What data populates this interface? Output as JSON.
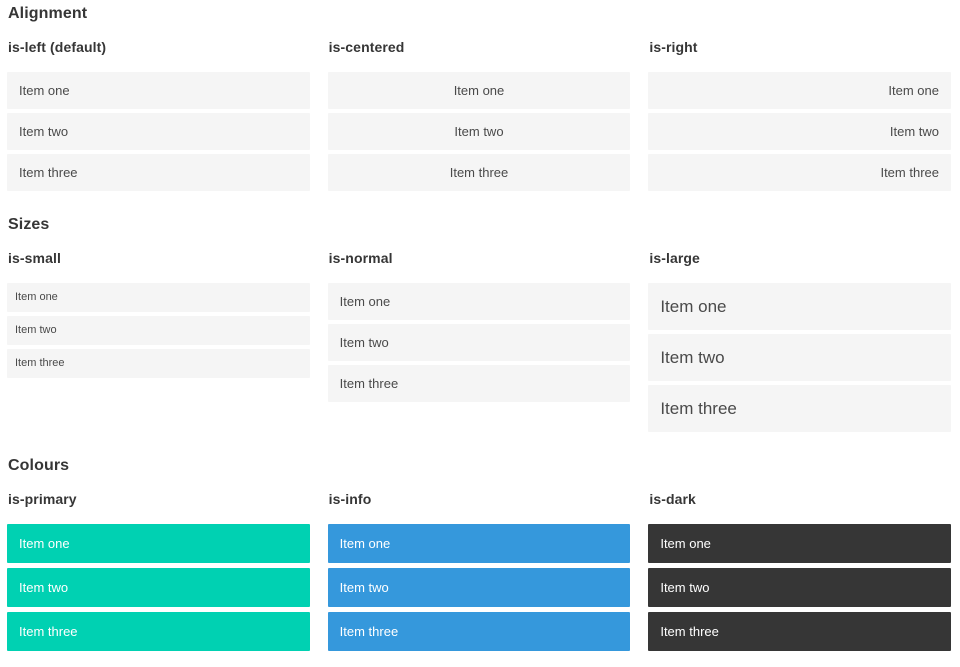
{
  "sections": [
    {
      "title": "Alignment",
      "columns": [
        {
          "label": "is-left (default)",
          "variant": "align-left",
          "items": [
            "Item one",
            "Item two",
            "Item three"
          ]
        },
        {
          "label": "is-centered",
          "variant": "align-center",
          "items": [
            "Item one",
            "Item two",
            "Item three"
          ]
        },
        {
          "label": "is-right",
          "variant": "align-right",
          "items": [
            "Item one",
            "Item two",
            "Item three"
          ]
        }
      ]
    },
    {
      "title": "Sizes",
      "columns": [
        {
          "label": "is-small",
          "variant": "size-small",
          "items": [
            "Item one",
            "Item two",
            "Item three"
          ]
        },
        {
          "label": "is-normal",
          "variant": "size-normal",
          "items": [
            "Item one",
            "Item two",
            "Item three"
          ]
        },
        {
          "label": "is-large",
          "variant": "size-large",
          "items": [
            "Item one",
            "Item two",
            "Item three"
          ]
        }
      ]
    },
    {
      "title": "Colours",
      "columns": [
        {
          "label": "is-primary",
          "variant": "color-primary",
          "items": [
            "Item one",
            "Item two",
            "Item three"
          ]
        },
        {
          "label": "is-info",
          "variant": "color-info",
          "items": [
            "Item one",
            "Item two",
            "Item three"
          ]
        },
        {
          "label": "is-dark",
          "variant": "color-dark",
          "items": [
            "Item one",
            "Item two",
            "Item three"
          ]
        }
      ]
    }
  ],
  "colors": {
    "primary": "#00d1b2",
    "info": "#3598dc",
    "dark": "#363636",
    "item_bg": "#f5f5f5",
    "item_text": "#4a4a4a",
    "heading_text": "#363636",
    "on_color_text": "#ffffff"
  }
}
